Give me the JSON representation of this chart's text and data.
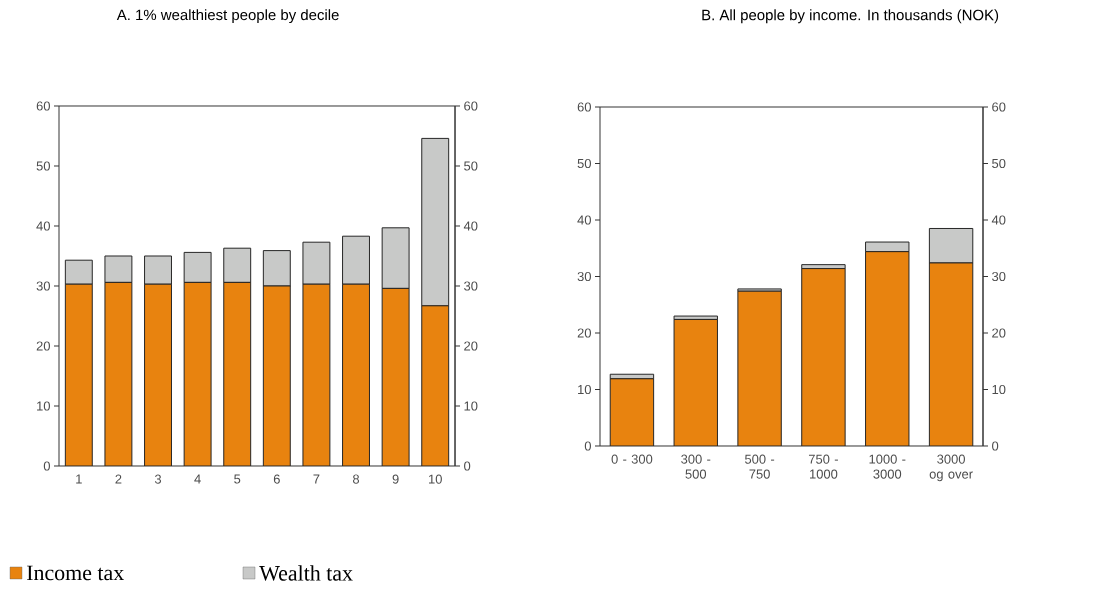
{
  "chart_data": [
    {
      "type": "bar",
      "stacked": true,
      "title": "A. 1% wealthiest people by decile",
      "categories": [
        "1",
        "2",
        "3",
        "4",
        "5",
        "6",
        "7",
        "8",
        "9",
        "10"
      ],
      "series": [
        {
          "name": "Income tax",
          "color": "#e8830f",
          "values": [
            30.3,
            30.6,
            30.3,
            30.6,
            30.6,
            30.0,
            30.3,
            30.3,
            29.6,
            26.7
          ]
        },
        {
          "name": "Wealth tax",
          "color": "#c8c9c8",
          "values": [
            4.0,
            4.4,
            4.7,
            5.0,
            5.7,
            5.9,
            7.0,
            8.0,
            10.1,
            27.9
          ]
        }
      ],
      "ylim": [
        0,
        60
      ],
      "yticks": [
        0,
        10,
        20,
        30,
        40,
        50,
        60
      ],
      "y2lim": [
        0,
        60
      ],
      "y2ticks": [
        0,
        10,
        20,
        30,
        40,
        50,
        60
      ],
      "legend": "bottom"
    },
    {
      "type": "bar",
      "stacked": true,
      "title": "B. All people by income. In thousands (NOK)",
      "categories": [
        "0 - 300",
        "300 - 500",
        "500 - 750",
        "750 - 1000",
        "1000 - 3000",
        "3000 og over"
      ],
      "series": [
        {
          "color": "#e8830f",
          "values": [
            11.9,
            22.4,
            27.4,
            31.4,
            34.4,
            32.4
          ]
        },
        {
          "color": "#c8c9c8",
          "values": [
            0.8,
            0.6,
            0.4,
            0.7,
            1.7,
            6.1
          ]
        }
      ],
      "ylim": [
        0,
        60
      ],
      "yticks": [
        0,
        10,
        20,
        30,
        40,
        50,
        60
      ],
      "y2lim": [
        0,
        60
      ],
      "y2ticks": [
        0,
        10,
        20,
        30,
        40,
        50,
        60
      ]
    }
  ]
}
